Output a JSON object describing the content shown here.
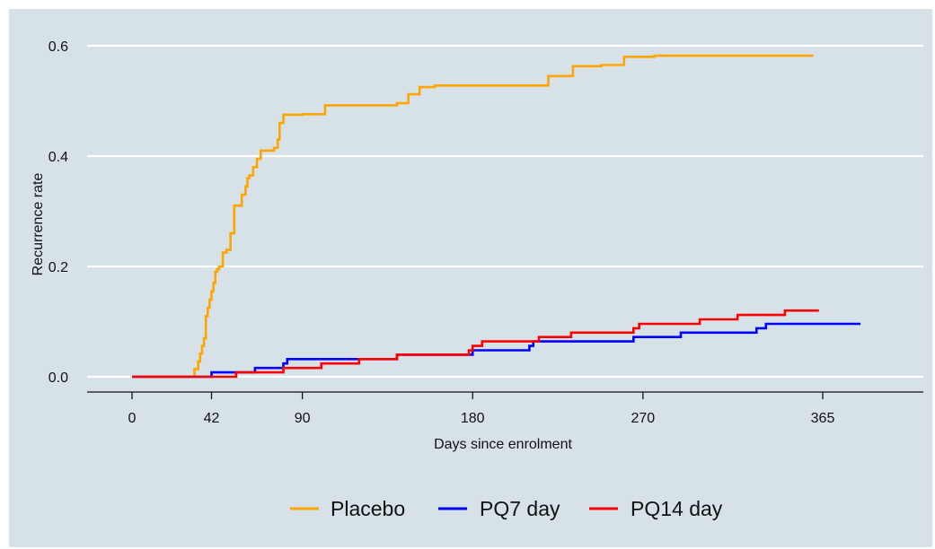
{
  "chart_data": {
    "type": "line",
    "xlabel": "Days since enrolment",
    "ylabel": "Recurrence rate",
    "xlim": [
      -25,
      430
    ],
    "ylim": [
      -0.03,
      0.62
    ],
    "x_ticks": [
      0,
      42,
      90,
      180,
      270,
      365
    ],
    "y_ticks": [
      "0.0",
      "0.2",
      "0.4",
      "0.6"
    ],
    "y_tick_values": [
      0.0,
      0.2,
      0.4,
      0.6
    ],
    "grid": "horizontal",
    "background_color": "#d6e2e8",
    "legend_position": "bottom",
    "step": true,
    "series": [
      {
        "name": "Placebo",
        "color": "#ffa500",
        "points": [
          [
            0,
            0
          ],
          [
            33,
            0.014
          ],
          [
            35,
            0.028
          ],
          [
            36,
            0.042
          ],
          [
            37,
            0.056
          ],
          [
            38,
            0.07
          ],
          [
            39,
            0.11
          ],
          [
            40,
            0.125
          ],
          [
            41,
            0.14
          ],
          [
            42,
            0.155
          ],
          [
            43,
            0.17
          ],
          [
            44,
            0.19
          ],
          [
            45,
            0.195
          ],
          [
            46,
            0.2
          ],
          [
            48,
            0.225
          ],
          [
            50,
            0.23
          ],
          [
            52,
            0.26
          ],
          [
            54,
            0.31
          ],
          [
            58,
            0.33
          ],
          [
            60,
            0.345
          ],
          [
            61,
            0.36
          ],
          [
            62,
            0.365
          ],
          [
            64,
            0.38
          ],
          [
            66,
            0.395
          ],
          [
            68,
            0.41
          ],
          [
            75,
            0.415
          ],
          [
            77,
            0.43
          ],
          [
            78,
            0.46
          ],
          [
            80,
            0.475
          ],
          [
            90,
            0.476
          ],
          [
            102,
            0.492
          ],
          [
            140,
            0.496
          ],
          [
            146,
            0.512
          ],
          [
            152,
            0.525
          ],
          [
            160,
            0.528
          ],
          [
            220,
            0.545
          ],
          [
            233,
            0.563
          ],
          [
            248,
            0.565
          ],
          [
            260,
            0.58
          ],
          [
            276,
            0.582
          ],
          [
            360,
            0.582
          ]
        ]
      },
      {
        "name": "PQ7 day",
        "color": "#0000ff",
        "points": [
          [
            0,
            0
          ],
          [
            42,
            0.008
          ],
          [
            65,
            0.016
          ],
          [
            80,
            0.024
          ],
          [
            82,
            0.032
          ],
          [
            125,
            0.032
          ],
          [
            140,
            0.04
          ],
          [
            178,
            0.04
          ],
          [
            180,
            0.048
          ],
          [
            210,
            0.056
          ],
          [
            212,
            0.064
          ],
          [
            230,
            0.064
          ],
          [
            265,
            0.072
          ],
          [
            275,
            0.072
          ],
          [
            290,
            0.08
          ],
          [
            330,
            0.088
          ],
          [
            335,
            0.096
          ],
          [
            385,
            0.096
          ]
        ]
      },
      {
        "name": "PQ14 day",
        "color": "#ff0000",
        "points": [
          [
            0,
            0
          ],
          [
            55,
            0.008
          ],
          [
            80,
            0.016
          ],
          [
            100,
            0.024
          ],
          [
            120,
            0.032
          ],
          [
            140,
            0.04
          ],
          [
            178,
            0.048
          ],
          [
            180,
            0.056
          ],
          [
            185,
            0.064
          ],
          [
            215,
            0.072
          ],
          [
            232,
            0.08
          ],
          [
            265,
            0.088
          ],
          [
            268,
            0.096
          ],
          [
            300,
            0.104
          ],
          [
            320,
            0.112
          ],
          [
            345,
            0.12
          ],
          [
            363,
            0.12
          ]
        ]
      }
    ]
  }
}
